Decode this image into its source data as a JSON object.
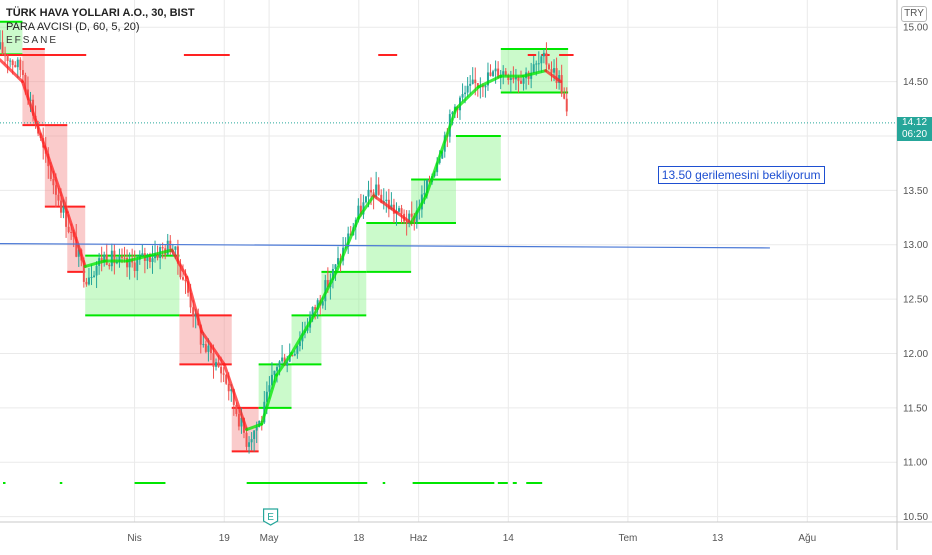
{
  "legend": {
    "symbol": "TÜRK HAVA YOLLARI A.O., 30, BIST",
    "indicator": "PARA AVCISI (D, 60, 5, 20)",
    "sub": "EFSANE"
  },
  "currency": "TRY",
  "last_price": {
    "value": "14.12",
    "countdown": "06:20"
  },
  "annotation": {
    "text": "13.50 gerilemesini bekliyorum"
  },
  "event_marker": "E",
  "chart_data": {
    "type": "line",
    "symbol": "TÜRK HAVA YOLLARI A.O.",
    "interval": "30",
    "exchange": "BIST",
    "currency": "TRY",
    "ylim": [
      10.45,
      15.25
    ],
    "y_ticks": [
      10.5,
      11.0,
      11.5,
      12.0,
      12.5,
      13.0,
      13.5,
      14.0,
      14.5,
      15.0
    ],
    "x_tick_labels": [
      "Nis",
      "19",
      "May",
      "18",
      "Haz",
      "14",
      "Tem",
      "13",
      "Ağu"
    ],
    "x_tick_positions": [
      1,
      7,
      10,
      16,
      20,
      26,
      34,
      40,
      46
    ],
    "x_domain": [
      -8,
      52
    ],
    "price": [
      [
        -8,
        14.8
      ],
      [
        -6.5,
        14.6
      ],
      [
        -5,
        13.8
      ],
      [
        -3.5,
        13.2
      ],
      [
        -2.3,
        12.7
      ],
      [
        -1,
        12.9
      ],
      [
        0.5,
        12.8
      ],
      [
        2,
        12.9
      ],
      [
        3.5,
        13.0
      ],
      [
        4.5,
        12.6
      ],
      [
        5.5,
        12.1
      ],
      [
        7,
        11.8
      ],
      [
        8.5,
        11.2
      ],
      [
        9.5,
        11.4
      ],
      [
        10.5,
        11.9
      ],
      [
        11.5,
        12.0
      ],
      [
        13,
        12.4
      ],
      [
        14.5,
        12.8
      ],
      [
        16,
        13.3
      ],
      [
        17,
        13.5
      ],
      [
        18.5,
        13.3
      ],
      [
        19.5,
        13.2
      ],
      [
        20.5,
        13.5
      ],
      [
        21.5,
        13.9
      ],
      [
        22.5,
        14.3
      ],
      [
        24,
        14.5
      ],
      [
        25.5,
        14.6
      ],
      [
        27,
        14.55
      ],
      [
        28.5,
        14.7
      ],
      [
        29.5,
        14.5
      ],
      [
        30,
        14.12
      ]
    ],
    "smoothed": [
      [
        -8,
        14.7
      ],
      [
        -6.5,
        14.5
      ],
      [
        -5,
        13.9
      ],
      [
        -3.5,
        13.3
      ],
      [
        -2.3,
        12.8
      ],
      [
        -1,
        12.85
      ],
      [
        0.5,
        12.85
      ],
      [
        2,
        12.9
      ],
      [
        3.5,
        12.95
      ],
      [
        4.5,
        12.7
      ],
      [
        5.5,
        12.2
      ],
      [
        7,
        11.9
      ],
      [
        8.5,
        11.3
      ],
      [
        9.5,
        11.35
      ],
      [
        10.5,
        11.8
      ],
      [
        11.5,
        12.0
      ],
      [
        13,
        12.35
      ],
      [
        14.5,
        12.75
      ],
      [
        16,
        13.25
      ],
      [
        17,
        13.45
      ],
      [
        18.5,
        13.3
      ],
      [
        19.5,
        13.2
      ],
      [
        20.5,
        13.45
      ],
      [
        21.5,
        13.85
      ],
      [
        22.5,
        14.25
      ],
      [
        24,
        14.45
      ],
      [
        25.5,
        14.55
      ],
      [
        27,
        14.55
      ],
      [
        28.5,
        14.6
      ],
      [
        29.5,
        14.5
      ]
    ],
    "trend_line": {
      "from": [
        -8,
        13.01
      ],
      "to": [
        43.5,
        12.97
      ]
    },
    "last_close": 14.12,
    "zones": [
      {
        "x0": -8,
        "x1": -6.5,
        "low": 14.75,
        "high": 15.05,
        "dir": "up"
      },
      {
        "x0": -6.5,
        "x1": -5,
        "low": 14.1,
        "high": 14.8,
        "dir": "down"
      },
      {
        "x0": -5,
        "x1": -3.5,
        "low": 13.35,
        "high": 14.1,
        "dir": "down"
      },
      {
        "x0": -3.5,
        "x1": -2.3,
        "low": 12.75,
        "high": 13.35,
        "dir": "down"
      },
      {
        "x0": -2.3,
        "x1": 4,
        "low": 12.35,
        "high": 12.9,
        "dir": "up"
      },
      {
        "x0": 4,
        "x1": 7.5,
        "low": 11.9,
        "high": 12.35,
        "dir": "down"
      },
      {
        "x0": 7.5,
        "x1": 9.3,
        "low": 11.1,
        "high": 11.5,
        "dir": "down"
      },
      {
        "x0": 9.3,
        "x1": 11.5,
        "low": 11.5,
        "high": 11.9,
        "dir": "up"
      },
      {
        "x0": 11.5,
        "x1": 13.5,
        "low": 11.9,
        "high": 12.35,
        "dir": "up"
      },
      {
        "x0": 13.5,
        "x1": 16.5,
        "low": 12.35,
        "high": 12.75,
        "dir": "up"
      },
      {
        "x0": 16.5,
        "x1": 19.5,
        "low": 12.75,
        "high": 13.2,
        "dir": "up"
      },
      {
        "x0": 19.5,
        "x1": 22.5,
        "low": 13.2,
        "high": 13.6,
        "dir": "up"
      },
      {
        "x0": 22.5,
        "x1": 25.5,
        "low": 13.6,
        "high": 14.0,
        "dir": "up"
      },
      {
        "x0": 25.5,
        "x1": 30,
        "low": 14.4,
        "high": 14.8,
        "dir": "up"
      }
    ],
    "top_markers": [
      {
        "x0": -8,
        "x1": -2.3,
        "dir": "down"
      },
      {
        "x0": 4.3,
        "x1": 7.3,
        "dir": "down"
      },
      {
        "x0": 17.3,
        "x1": 18.5,
        "dir": "down"
      },
      {
        "x0": 27.3,
        "x1": 27.8,
        "dir": "down"
      },
      {
        "x0": 28.2,
        "x1": 28.7,
        "dir": "down"
      },
      {
        "x0": 29.4,
        "x1": 30.3,
        "dir": "down"
      }
    ],
    "bottom_markers": [
      {
        "x0": -7.8,
        "x1": -7.7,
        "dir": "up"
      },
      {
        "x0": -4,
        "x1": -3.9,
        "dir": "up"
      },
      {
        "x0": 1,
        "x1": 3,
        "dir": "up"
      },
      {
        "x0": 8.5,
        "x1": 16.5,
        "dir": "up"
      },
      {
        "x0": 17.6,
        "x1": 17.7,
        "dir": "up"
      },
      {
        "x0": 19.6,
        "x1": 25,
        "dir": "up"
      },
      {
        "x0": 25.3,
        "x1": 25.9,
        "dir": "up"
      },
      {
        "x0": 26.3,
        "x1": 26.5,
        "dir": "up"
      },
      {
        "x0": 27.2,
        "x1": 28.2,
        "dir": "up"
      }
    ],
    "colors": {
      "bull_line": "#00e600",
      "bear_line": "#ff2222",
      "bull_zone": "#8cf58c",
      "bear_zone": "#f58c8c",
      "up_candle": "#26a69a",
      "down_candle": "#ef5350",
      "trend_line": "#4a78d6",
      "last_price": "#26a69a",
      "annotation": "#1e4fd1",
      "grid": "#eaeaea"
    }
  }
}
